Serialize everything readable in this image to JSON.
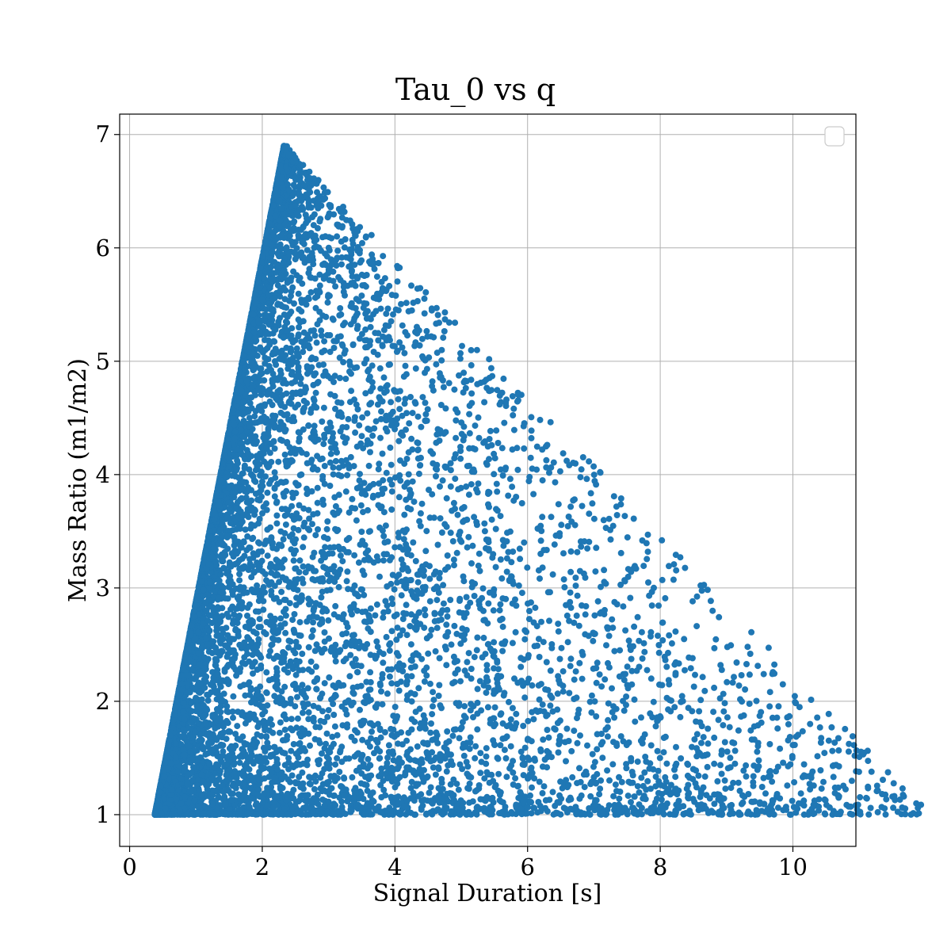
{
  "chart_data": {
    "type": "scatter",
    "title": "Tau_0 vs q",
    "xlabel": "Signal Duration [s]",
    "ylabel": "Mass Ratio (m1/m2)",
    "xlim": [
      -0.15,
      10.95
    ],
    "ylim": [
      0.72,
      7.18
    ],
    "xticks": [
      0,
      2,
      4,
      6,
      8,
      10
    ],
    "yticks": [
      1,
      2,
      3,
      4,
      5,
      6,
      7
    ],
    "xtick_labels": [
      "0",
      "2",
      "4",
      "6",
      "8",
      "10"
    ],
    "ytick_labels": [
      "1",
      "2",
      "3",
      "4",
      "5",
      "6",
      "7"
    ],
    "grid": true,
    "legend": "top-right (empty)",
    "color": "#1f77b4",
    "distribution": {
      "description_points": "dense triangular cloud",
      "q_range": [
        1.0,
        6.9
      ],
      "duration_min": 0.38,
      "peak": [
        2.35,
        6.88
      ]
    },
    "outliers": [
      [
        10.48,
        1.01
      ],
      [
        9.67,
        1.08
      ],
      [
        9.62,
        1.05
      ],
      [
        9.45,
        1.04
      ],
      [
        9.24,
        1.17
      ],
      [
        9.2,
        1.21
      ],
      [
        8.65,
        1.24
      ],
      [
        8.62,
        1.09
      ],
      [
        8.58,
        1.04
      ],
      [
        8.09,
        1.29
      ],
      [
        8.06,
        1.25
      ],
      [
        7.9,
        1.03
      ],
      [
        7.49,
        1.41
      ],
      [
        7.47,
        1.06
      ],
      [
        7.42,
        1.02
      ],
      [
        7.38,
        1.03
      ],
      [
        7.2,
        1.39
      ],
      [
        7.13,
        1.64
      ],
      [
        7.11,
        1.62
      ],
      [
        7.08,
        1.18
      ],
      [
        7.0,
        1.33
      ],
      [
        6.95,
        1.27
      ],
      [
        6.9,
        1.61
      ],
      [
        6.78,
        1.41
      ],
      [
        6.75,
        1.63
      ],
      [
        6.7,
        1.74
      ],
      [
        6.62,
        1.65
      ],
      [
        6.6,
        1.02
      ],
      [
        6.55,
        1.06
      ],
      [
        6.45,
        1.11
      ],
      [
        6.4,
        1.76
      ],
      [
        6.38,
        1.91
      ],
      [
        6.3,
        1.88
      ],
      [
        6.25,
        1.91
      ],
      [
        6.2,
        1.56
      ],
      [
        6.15,
        1.02
      ],
      [
        6.1,
        1.32
      ],
      [
        6.05,
        1.4
      ],
      [
        6.02,
        1.66
      ],
      [
        5.95,
        1.44
      ],
      [
        5.9,
        1.05
      ],
      [
        5.85,
        1.25
      ],
      [
        5.8,
        2.2
      ],
      [
        5.75,
        1.84
      ],
      [
        5.6,
        2.22
      ],
      [
        5.55,
        2.2
      ],
      [
        5.5,
        1.62
      ],
      [
        5.45,
        1.07
      ],
      [
        5.4,
        2.18
      ],
      [
        5.35,
        1.32
      ],
      [
        5.3,
        1.92
      ],
      [
        5.2,
        2.39
      ],
      [
        5.15,
        2.2
      ],
      [
        5.05,
        2.59
      ],
      [
        5.0,
        2.58
      ],
      [
        4.95,
        2.28
      ],
      [
        4.9,
        2.17
      ],
      [
        4.85,
        2.5
      ],
      [
        4.8,
        2.61
      ],
      [
        4.7,
        2.72
      ],
      [
        4.6,
        2.77
      ],
      [
        4.55,
        2.63
      ],
      [
        4.5,
        2.42
      ],
      [
        4.45,
        2.81
      ],
      [
        4.35,
        3.05
      ],
      [
        4.2,
        3.15
      ],
      [
        4.1,
        3.25
      ],
      [
        3.95,
        3.27
      ],
      [
        3.75,
        3.73
      ],
      [
        3.6,
        3.88
      ],
      [
        3.5,
        4.34
      ],
      [
        3.4,
        4.37
      ],
      [
        3.2,
        4.51
      ],
      [
        3.1,
        4.58
      ],
      [
        2.95,
        4.91
      ],
      [
        2.9,
        5.08
      ],
      [
        2.8,
        5.56
      ],
      [
        2.7,
        5.89
      ],
      [
        2.6,
        6.05
      ],
      [
        2.5,
        6.37
      ],
      [
        2.4,
        6.82
      ],
      [
        2.36,
        6.88
      ],
      [
        2.3,
        6.62
      ],
      [
        2.2,
        6.28
      ]
    ]
  }
}
